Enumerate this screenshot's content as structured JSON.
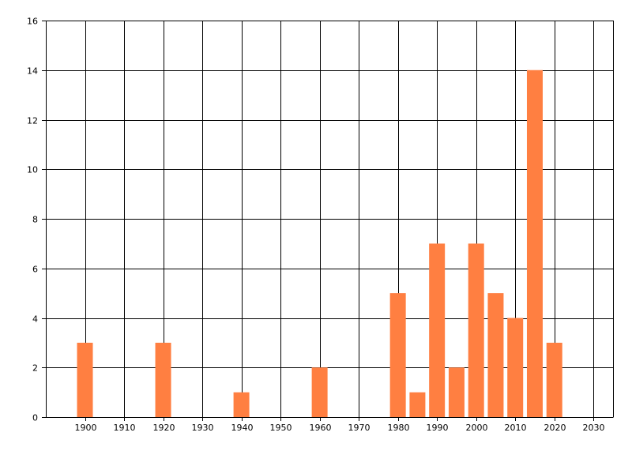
{
  "chart_data": {
    "type": "bar",
    "x": [
      1900,
      1920,
      1940,
      1960,
      1980,
      1985,
      1990,
      1995,
      2000,
      2005,
      2010,
      2015,
      2020
    ],
    "values": [
      3,
      3,
      1,
      2,
      5,
      1,
      7,
      2,
      7,
      5,
      4,
      14,
      3
    ],
    "color": "#ff7f41",
    "xlim": [
      1890,
      2035
    ],
    "xticks": [
      1900,
      1910,
      1920,
      1930,
      1940,
      1950,
      1960,
      1970,
      1980,
      1990,
      2000,
      2010,
      2020,
      2030
    ],
    "ylim": [
      0,
      16
    ],
    "yticks": [
      0,
      2,
      4,
      6,
      8,
      10,
      12,
      14,
      16
    ],
    "grid": true
  }
}
